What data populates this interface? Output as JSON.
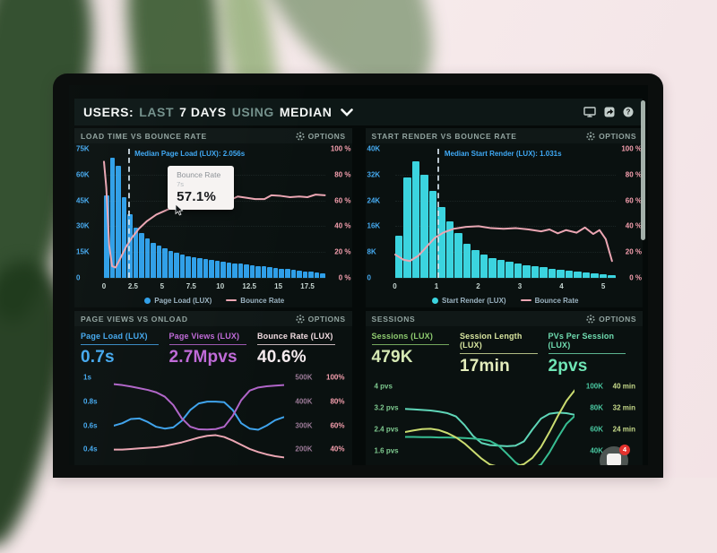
{
  "header": {
    "parts": [
      "USERS:",
      "LAST",
      "7 DAYS",
      "USING",
      "MEDIAN"
    ]
  },
  "ui": {
    "options_label": "OPTIONS"
  },
  "chat": {
    "badge": "4"
  },
  "colors": {
    "bar_blue": "#2f9fe8",
    "bar_cyan": "#3bd4df",
    "bounce_pink": "#eba6b3",
    "axis_blue": "#45a9ef",
    "axis_pink": "#f59fae",
    "annotation_blue": "#3fa9f5"
  },
  "chart_data": [
    {
      "type": "histogram+line",
      "title": "LOAD TIME VS BOUNCE RATE",
      "x_max": 19,
      "x_tick_labels": [
        "0",
        "2.5",
        "5",
        "7.5",
        "10",
        "12.5",
        "15",
        "17.5"
      ],
      "y_left": {
        "labels": [
          "75K",
          "60K",
          "45K",
          "30K",
          "15K",
          "0"
        ],
        "max": 75000,
        "color": "#45a9ef"
      },
      "y_right": {
        "labels": [
          "100 %",
          "80 %",
          "60 %",
          "40 %",
          "20 %",
          "0 %"
        ],
        "max_percent": 100,
        "color": "#f59fae"
      },
      "bar_series": {
        "name": "Page Load (LUX)",
        "color": "#2f9fe8",
        "bin_width_s": 0.5,
        "values_thousands": [
          48,
          70,
          65,
          47,
          37,
          29,
          26,
          23,
          20.5,
          18.5,
          17,
          15.5,
          14.5,
          13.5,
          12.5,
          12,
          11.5,
          11,
          10.5,
          10,
          9.5,
          9,
          8.6,
          8.2,
          7.8,
          7.4,
          7,
          6.6,
          6.2,
          5.8,
          5.4,
          5,
          4.6,
          4.2,
          3.8,
          3.4,
          3,
          2.6
        ]
      },
      "line_series": {
        "name": "Bounce Rate",
        "color": "#eba6b3",
        "points_x_seconds_y_percent": [
          [
            0,
            90
          ],
          [
            0.2,
            70
          ],
          [
            0.45,
            25
          ],
          [
            0.7,
            9
          ],
          [
            1,
            8
          ],
          [
            1.4,
            15
          ],
          [
            1.9,
            24
          ],
          [
            2.4,
            31
          ],
          [
            3,
            38
          ],
          [
            3.7,
            44
          ],
          [
            4.5,
            49
          ],
          [
            5.5,
            53
          ],
          [
            6.5,
            56
          ],
          [
            7,
            57.1
          ],
          [
            8,
            59
          ],
          [
            9,
            60.5
          ],
          [
            10,
            61
          ],
          [
            10.8,
            60
          ],
          [
            11.5,
            63
          ],
          [
            12.3,
            62
          ],
          [
            13,
            61
          ],
          [
            13.8,
            61
          ],
          [
            14.4,
            64
          ],
          [
            15.2,
            63.5
          ],
          [
            16,
            62.5
          ],
          [
            16.8,
            63
          ],
          [
            17.5,
            62.5
          ],
          [
            18.2,
            64.5
          ],
          [
            19,
            64
          ]
        ]
      },
      "median_annotation": {
        "label": "Median Page Load (LUX): 2.056s",
        "x_seconds": 2.056
      },
      "tooltip": {
        "title": "Bounce Rate",
        "subtitle": "7s",
        "value": "57.1%",
        "x_seconds": 7
      },
      "legend": [
        {
          "label": "Page Load (LUX)"
        },
        {
          "label": "Bounce Rate"
        }
      ]
    },
    {
      "type": "histogram+line",
      "title": "START RENDER VS BOUNCE RATE",
      "x_max": 5.3,
      "x_tick_labels": [
        "0",
        "1",
        "2",
        "3",
        "4",
        "5"
      ],
      "y_left": {
        "labels": [
          "40K",
          "32K",
          "24K",
          "16K",
          "8K",
          "0"
        ],
        "max": 40000,
        "color": "#45a9ef"
      },
      "y_right": {
        "labels": [
          "100 %",
          "80 %",
          "60 %",
          "40 %",
          "20 %",
          "0 %"
        ],
        "max_percent": 100,
        "color": "#f59fae"
      },
      "bar_series": {
        "name": "Start Render (LUX)",
        "color": "#3bd4df",
        "bin_width_s": 0.2,
        "values_thousands": [
          13,
          31,
          36,
          32,
          27,
          22,
          17.5,
          14,
          10.5,
          8.5,
          7.2,
          6.2,
          5.5,
          5,
          4.5,
          4,
          3.6,
          3.2,
          2.9,
          2.6,
          2.3,
          2,
          1.7,
          1.4,
          1.1,
          0.9
        ]
      },
      "line_series": {
        "name": "Bounce Rate",
        "color": "#eba6b3",
        "points_x_seconds_y_percent": [
          [
            0,
            18
          ],
          [
            0.2,
            14
          ],
          [
            0.35,
            13
          ],
          [
            0.55,
            17
          ],
          [
            0.75,
            24
          ],
          [
            0.95,
            31
          ],
          [
            1.15,
            35
          ],
          [
            1.4,
            38
          ],
          [
            1.7,
            39.5
          ],
          [
            2,
            40
          ],
          [
            2.3,
            38.5
          ],
          [
            2.6,
            38
          ],
          [
            2.9,
            38.5
          ],
          [
            3.2,
            37.5
          ],
          [
            3.5,
            36
          ],
          [
            3.7,
            37.5
          ],
          [
            3.9,
            34.5
          ],
          [
            4.1,
            37
          ],
          [
            4.35,
            35
          ],
          [
            4.55,
            39
          ],
          [
            4.75,
            34
          ],
          [
            4.9,
            37
          ],
          [
            5.05,
            30
          ],
          [
            5.2,
            13
          ]
        ]
      },
      "median_annotation": {
        "label": "Median Start Render (LUX): 1.031s",
        "x_seconds": 1.031
      },
      "legend": [
        {
          "label": "Start Render (LUX)"
        },
        {
          "label": "Bounce Rate"
        }
      ]
    },
    {
      "type": "line",
      "title": "PAGE VIEWS VS ONLOAD",
      "metrics": [
        {
          "label": "Page Load (LUX)",
          "value": "0.7s",
          "label_color": "#45a9ef",
          "value_color": "#45a9ef"
        },
        {
          "label": "Page Views (LUX)",
          "value": "2.7Mpvs",
          "label_color": "#c06ad8",
          "value_color": "#c06ad8"
        },
        {
          "label": "Bounce Rate (LUX)",
          "value": "40.6%",
          "label_color": "#f2dde2",
          "value_color": "#f6ecef"
        }
      ],
      "y_left_labels": [
        "1s",
        "0.8s",
        "0.6s",
        "0.4s"
      ],
      "y_left_color": "#45a9ef",
      "y_right_labels": [
        [
          "500K",
          "100%"
        ],
        [
          "400K",
          "80%"
        ],
        [
          "300K",
          "60%"
        ],
        [
          "200K",
          "40%"
        ]
      ],
      "y_right_colors": [
        "#9b7a97",
        "#f59fae"
      ],
      "series": [
        {
          "name": "Page Load (LUX)",
          "color": "#3fa3ec",
          "unit": "s",
          "range": [
            0.27,
            1.04
          ],
          "values": [
            0.6,
            0.62,
            0.655,
            0.66,
            0.63,
            0.59,
            0.575,
            0.585,
            0.64,
            0.73,
            0.785,
            0.8,
            0.8,
            0.795,
            0.73,
            0.62,
            0.575,
            0.565,
            0.6,
            0.645,
            0.67
          ]
        },
        {
          "name": "Page Views (LUX)",
          "color": "#b065c8",
          "unit": "K",
          "range": [
            135,
            519
          ],
          "values": [
            472,
            468,
            462,
            455,
            448,
            438,
            420,
            385,
            330,
            295,
            284,
            283,
            285,
            295,
            340,
            405,
            445,
            458,
            463,
            466,
            468
          ]
        },
        {
          "name": "Bounce Rate (LUX)",
          "color": "#eba6b3",
          "unit": "%",
          "range": [
            27,
            104
          ],
          "values": [
            40,
            40,
            40.5,
            41,
            41.5,
            42,
            43,
            44.5,
            46,
            48,
            50,
            51.5,
            52,
            50.5,
            47.5,
            44,
            40.5,
            38,
            36,
            34.5,
            33.5
          ]
        }
      ]
    },
    {
      "type": "line",
      "title": "SESSIONS",
      "metrics": [
        {
          "label": "Sessions (LUX)",
          "value": "479K",
          "label_color": "#8fcc70",
          "value_color": "#d6e9b4"
        },
        {
          "label": "Session Length (LUX)",
          "value": "17min",
          "label_color": "#d9e6a0",
          "value_color": "#e4edbc"
        },
        {
          "label": "PVs Per Session (LUX)",
          "value": "2pvs",
          "label_color": "#6fdcb0",
          "value_color": "#6fe5b5"
        }
      ],
      "y_left_labels": [
        "4 pvs",
        "3.2 pvs",
        "2.4 pvs",
        "1.6 pvs"
      ],
      "y_left_color": "#7ec98f",
      "y_right_labels": [
        [
          "100K",
          "40 min"
        ],
        [
          "80K",
          "32 min"
        ],
        [
          "60K",
          "24 min"
        ],
        [
          "40K",
          ""
        ]
      ],
      "y_right_colors": [
        "#49c7a0",
        "#c9dd8c"
      ],
      "series": [
        {
          "name": "Sessions (LUX)",
          "color": "#5fd6b8",
          "unit": "K",
          "range": [
            27,
            104
          ],
          "values": [
            79,
            78.5,
            78,
            77.5,
            76.5,
            75,
            72,
            64,
            54,
            47.5,
            45.5,
            45,
            44.5,
            45,
            49,
            60,
            70,
            74.5,
            75.5,
            75,
            73.5
          ]
        },
        {
          "name": "PVs Per Session (LUX)",
          "color": "#37bd92",
          "unit": "pvs",
          "range": [
            1.08,
            4.15
          ],
          "values": [
            2.12,
            2.12,
            2.11,
            2.11,
            2.1,
            2.1,
            2.09,
            2.08,
            2.06,
            2.03,
            1.97,
            1.8,
            1.5,
            1.18,
            0.98,
            0.95,
            1.1,
            1.55,
            2.1,
            2.6,
            2.9
          ]
        },
        {
          "name": "Session Length (LUX)",
          "color": "#cbdc70",
          "unit": "min",
          "range": [
            10.8,
            41.5
          ],
          "values": [
            23,
            23.6,
            24.1,
            24.2,
            23.7,
            22.6,
            21,
            18.8,
            16,
            13.2,
            11,
            10.2,
            10,
            10.3,
            11.2,
            13.5,
            17.5,
            23,
            29,
            34.5,
            38.5
          ]
        }
      ]
    }
  ]
}
